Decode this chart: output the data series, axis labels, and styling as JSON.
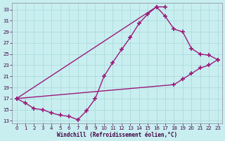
{
  "xlabel": "Windchill (Refroidissement éolien,°C)",
  "xlim": [
    -0.5,
    23.5
  ],
  "ylim": [
    12.5,
    34.2
  ],
  "yticks": [
    13,
    15,
    17,
    19,
    21,
    23,
    25,
    27,
    29,
    31,
    33
  ],
  "xticks": [
    0,
    1,
    2,
    3,
    4,
    5,
    6,
    7,
    8,
    9,
    10,
    11,
    12,
    13,
    14,
    15,
    16,
    17,
    18,
    19,
    20,
    21,
    22,
    23
  ],
  "bg_color": "#c8eef0",
  "grid_color": "#a8d8d8",
  "line_color": "#9b1a7a",
  "line1_x": [
    0,
    1,
    2,
    3,
    4,
    5,
    6,
    7,
    8,
    9,
    10,
    11,
    12,
    13,
    14,
    15,
    16,
    17
  ],
  "line1_y": [
    17.0,
    16.2,
    15.2,
    15.0,
    14.4,
    14.0,
    13.8,
    13.2,
    14.8,
    17.0,
    21.0,
    23.5,
    25.8,
    28.0,
    30.5,
    32.2,
    33.5,
    33.5
  ],
  "line2_x": [
    0,
    16,
    17,
    18,
    19,
    20,
    21,
    22,
    23
  ],
  "line2_y": [
    17.0,
    33.5,
    31.8,
    29.5,
    29.0,
    26.0,
    25.0,
    24.8,
    24.0
  ],
  "line3_x": [
    0,
    18,
    19,
    20,
    21,
    22,
    23
  ],
  "line3_y": [
    17.0,
    19.5,
    20.5,
    21.5,
    22.5,
    23.0,
    24.0
  ]
}
